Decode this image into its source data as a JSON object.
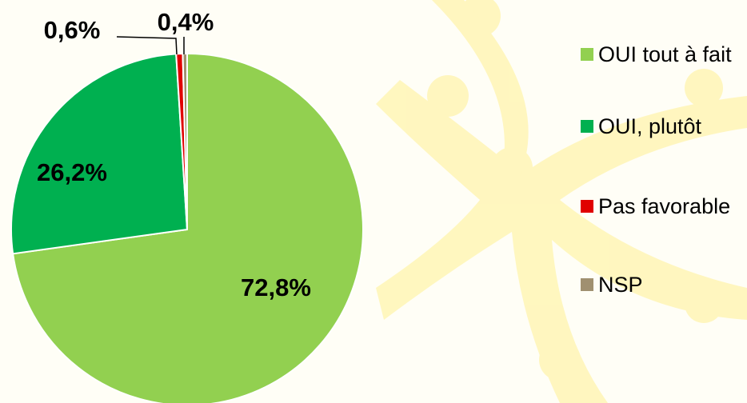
{
  "chart_data": {
    "type": "pie",
    "categories": [
      "OUI tout à fait",
      "OUI, plutôt",
      "Pas favorable",
      "NSP"
    ],
    "values": [
      72.8,
      26.2,
      0.6,
      0.4
    ],
    "value_labels": [
      "72,8%",
      "26,2%",
      "0,6%",
      "0,4%"
    ],
    "colors": [
      "#92d050",
      "#00b050",
      "#e00000",
      "#a09070"
    ],
    "legend": "right"
  }
}
